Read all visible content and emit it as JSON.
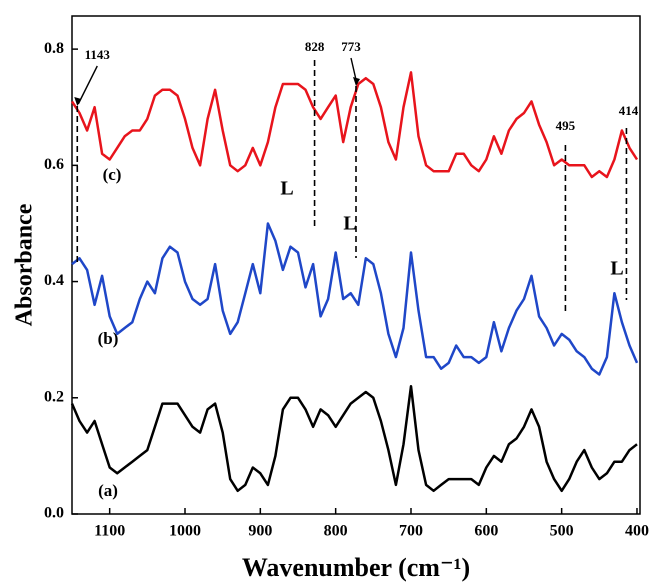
{
  "chart_data": {
    "type": "line",
    "x_label": "Wavenumber (cm⁻¹)",
    "y_label": "Absorbance",
    "xlim": [
      1150,
      396
    ],
    "ylim": [
      0,
      0.857
    ],
    "reverse_x": true,
    "xticks": [
      1100,
      1000,
      900,
      800,
      700,
      600,
      500,
      400
    ],
    "yticks": [
      {
        "value": 0,
        "label": "0.0"
      },
      0.2,
      0.4,
      0.6,
      0.8
    ],
    "x": [
      1150,
      1140,
      1130,
      1120,
      1110,
      1100,
      1090,
      1080,
      1070,
      1060,
      1050,
      1040,
      1030,
      1020,
      1010,
      1000,
      990,
      980,
      970,
      960,
      950,
      940,
      930,
      920,
      910,
      900,
      890,
      880,
      870,
      860,
      850,
      840,
      830,
      820,
      810,
      800,
      790,
      780,
      770,
      760,
      750,
      740,
      730,
      720,
      710,
      700,
      690,
      680,
      670,
      660,
      650,
      640,
      630,
      620,
      610,
      600,
      590,
      580,
      570,
      560,
      550,
      540,
      530,
      520,
      510,
      500,
      490,
      480,
      470,
      460,
      450,
      440,
      430,
      420,
      410,
      400
    ],
    "series": [
      {
        "name": "(a)",
        "color": "#000000",
        "values": [
          0.19,
          0.16,
          0.14,
          0.16,
          0.12,
          0.08,
          0.07,
          0.08,
          0.09,
          0.1,
          0.11,
          0.15,
          0.19,
          0.19,
          0.19,
          0.17,
          0.15,
          0.14,
          0.18,
          0.19,
          0.14,
          0.06,
          0.04,
          0.05,
          0.08,
          0.07,
          0.05,
          0.1,
          0.18,
          0.2,
          0.2,
          0.18,
          0.15,
          0.18,
          0.17,
          0.15,
          0.17,
          0.19,
          0.2,
          0.21,
          0.2,
          0.16,
          0.11,
          0.05,
          0.12,
          0.22,
          0.11,
          0.05,
          0.04,
          0.05,
          0.06,
          0.06,
          0.06,
          0.06,
          0.05,
          0.08,
          0.1,
          0.09,
          0.12,
          0.13,
          0.15,
          0.18,
          0.15,
          0.09,
          0.06,
          0.04,
          0.06,
          0.09,
          0.11,
          0.08,
          0.06,
          0.07,
          0.09,
          0.09,
          0.11,
          0.12
        ]
      },
      {
        "name": "(b)",
        "color": "#1f47c8",
        "values": [
          0.43,
          0.44,
          0.42,
          0.36,
          0.41,
          0.34,
          0.31,
          0.32,
          0.33,
          0.37,
          0.4,
          0.38,
          0.44,
          0.46,
          0.45,
          0.4,
          0.37,
          0.36,
          0.37,
          0.43,
          0.35,
          0.31,
          0.33,
          0.38,
          0.43,
          0.38,
          0.5,
          0.47,
          0.42,
          0.46,
          0.45,
          0.39,
          0.43,
          0.34,
          0.37,
          0.45,
          0.37,
          0.38,
          0.36,
          0.44,
          0.43,
          0.38,
          0.31,
          0.27,
          0.32,
          0.45,
          0.35,
          0.27,
          0.27,
          0.25,
          0.26,
          0.29,
          0.27,
          0.27,
          0.26,
          0.27,
          0.33,
          0.28,
          0.32,
          0.35,
          0.37,
          0.41,
          0.34,
          0.32,
          0.29,
          0.31,
          0.3,
          0.28,
          0.27,
          0.25,
          0.24,
          0.27,
          0.38,
          0.33,
          0.29,
          0.26
        ]
      },
      {
        "name": "(c)",
        "color": "#e8141c",
        "values": [
          0.71,
          0.69,
          0.66,
          0.7,
          0.62,
          0.61,
          0.63,
          0.65,
          0.66,
          0.66,
          0.68,
          0.72,
          0.73,
          0.73,
          0.72,
          0.68,
          0.63,
          0.6,
          0.68,
          0.73,
          0.66,
          0.6,
          0.59,
          0.6,
          0.63,
          0.6,
          0.64,
          0.7,
          0.74,
          0.74,
          0.74,
          0.73,
          0.7,
          0.68,
          0.7,
          0.72,
          0.64,
          0.7,
          0.74,
          0.75,
          0.74,
          0.7,
          0.64,
          0.61,
          0.7,
          0.76,
          0.65,
          0.6,
          0.59,
          0.59,
          0.59,
          0.62,
          0.62,
          0.6,
          0.59,
          0.61,
          0.65,
          0.62,
          0.66,
          0.68,
          0.69,
          0.71,
          0.67,
          0.64,
          0.6,
          0.61,
          0.6,
          0.6,
          0.6,
          0.58,
          0.59,
          0.58,
          0.61,
          0.66,
          0.63,
          0.61
        ]
      }
    ],
    "annotations": [
      1143,
      828,
      773,
      495,
      414
    ],
    "peak_labels": [
      "L",
      "L",
      "L"
    ]
  }
}
